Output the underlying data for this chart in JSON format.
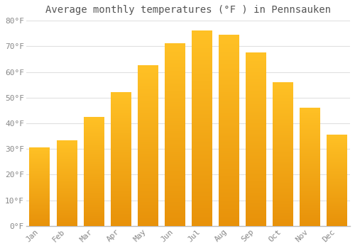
{
  "title": "Average monthly temperatures (°F ) in Pennsauken",
  "months": [
    "Jan",
    "Feb",
    "Mar",
    "Apr",
    "May",
    "Jun",
    "Jul",
    "Aug",
    "Sep",
    "Oct",
    "Nov",
    "Dec"
  ],
  "values": [
    30.5,
    33.3,
    42.3,
    52.0,
    62.5,
    71.0,
    76.0,
    74.5,
    67.5,
    56.0,
    46.0,
    35.5
  ],
  "bar_color_top": "#FFC125",
  "bar_color_bottom": "#E8920A",
  "ylim": [
    0,
    80
  ],
  "ytick_step": 10,
  "background_color": "#FFFFFF",
  "grid_color": "#E0E0E0",
  "title_fontsize": 10,
  "tick_fontsize": 8,
  "tick_label_color": "#888888",
  "title_color": "#555555",
  "bar_width": 0.75,
  "bar_gap_color": "#FFFFFF"
}
